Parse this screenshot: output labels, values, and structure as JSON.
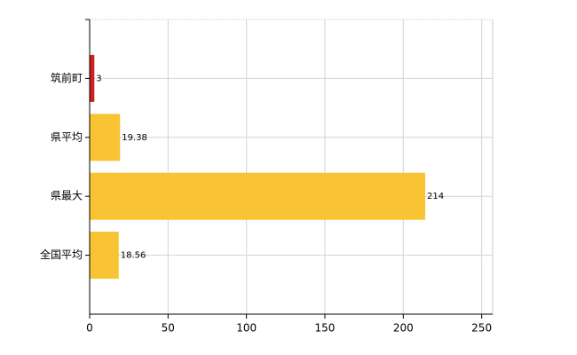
{
  "chart_data": {
    "type": "bar",
    "orientation": "horizontal",
    "categories": [
      "筑前町",
      "県平均",
      "県最大",
      "全国平均"
    ],
    "values": [
      3,
      19.38,
      214,
      18.56
    ],
    "colors": [
      "#cc2222",
      "#f8c434",
      "#f8c434",
      "#f8c434"
    ],
    "xlim": [
      0,
      257
    ],
    "xticks": [
      0,
      50,
      100,
      150,
      200,
      250
    ],
    "grid": true
  }
}
